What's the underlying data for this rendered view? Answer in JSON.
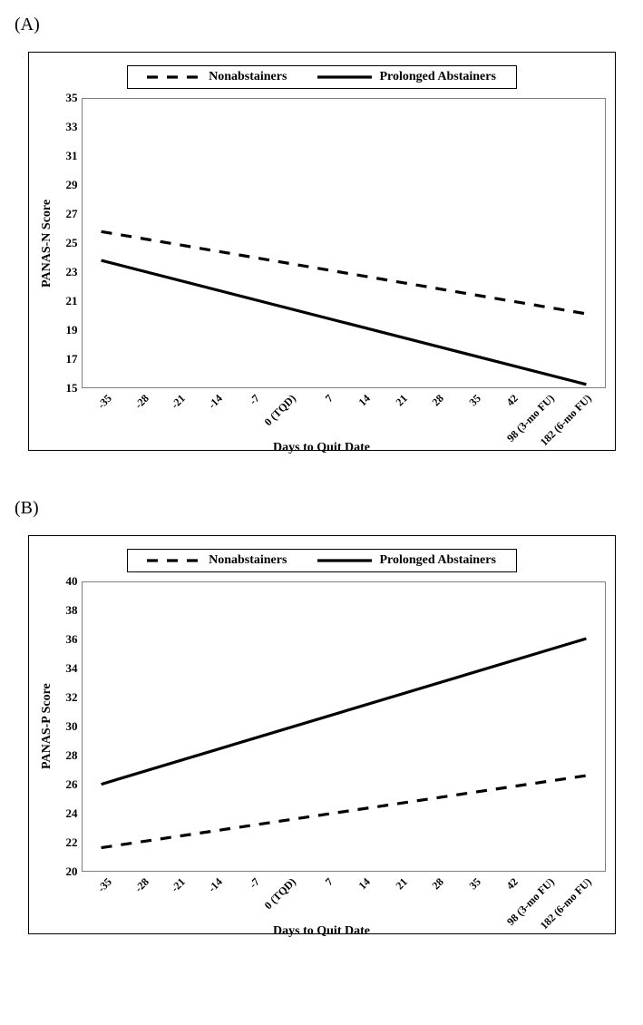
{
  "panels": {
    "A": {
      "label": "(A)",
      "legend": {
        "series1_label": "Nonabstainers",
        "series2_label": "Prolonged Abstainers",
        "series1_dash": "12 10",
        "series2_dash": "none",
        "line_color": "#000000",
        "line_width": 3
      },
      "chart": {
        "type": "line",
        "y_label": "PANAS-N Score",
        "x_label": "Days to Quit Date",
        "ylim": [
          15,
          35
        ],
        "ytick_step": 2,
        "y_ticks": [
          15,
          17,
          19,
          21,
          23,
          25,
          27,
          29,
          31,
          33,
          35
        ],
        "x_categories": [
          "-35",
          "-28",
          "-21",
          "-14",
          "-7",
          "0 (TQD)",
          "7",
          "14",
          "21",
          "28",
          "35",
          "42",
          "98 (3-mo FU)",
          "182 (6-mo FU)"
        ],
        "grid_color": "none",
        "border_color": "#7f7f7f",
        "background_color": "#ffffff",
        "label_fontsize": 14,
        "tick_fontsize": 13,
        "series": {
          "nonabstainers": {
            "start_y": 25.8,
            "end_y": 20.1,
            "color": "#000000",
            "dash": "12 10",
            "width": 3.2
          },
          "prolonged": {
            "start_y": 23.8,
            "end_y": 15.2,
            "color": "#000000",
            "dash": "none",
            "width": 3.2
          }
        }
      }
    },
    "B": {
      "label": "(B)",
      "legend": {
        "series1_label": "Nonabstainers",
        "series2_label": "Prolonged Abstainers",
        "series1_dash": "12 10",
        "series2_dash": "none",
        "line_color": "#000000",
        "line_width": 3
      },
      "chart": {
        "type": "line",
        "y_label": "PANAS-P Score",
        "x_label": "Days to Quit Date",
        "ylim": [
          20,
          40
        ],
        "ytick_step": 2,
        "y_ticks": [
          20,
          22,
          24,
          26,
          28,
          30,
          32,
          34,
          36,
          38,
          40
        ],
        "x_categories": [
          "-35",
          "-28",
          "-21",
          "-14",
          "-7",
          "0 (TQD)",
          "7",
          "14",
          "21",
          "28",
          "35",
          "42",
          "98 (3-mo FU)",
          "182 (6-mo FU)"
        ],
        "grid_color": "none",
        "border_color": "#7f7f7f",
        "background_color": "#ffffff",
        "label_fontsize": 14,
        "tick_fontsize": 13,
        "series": {
          "nonabstainers": {
            "start_y": 21.6,
            "end_y": 26.6,
            "color": "#000000",
            "dash": "12 10",
            "width": 3.2
          },
          "prolonged": {
            "start_y": 26.0,
            "end_y": 36.1,
            "color": "#000000",
            "dash": "none",
            "width": 3.2
          }
        }
      }
    }
  }
}
